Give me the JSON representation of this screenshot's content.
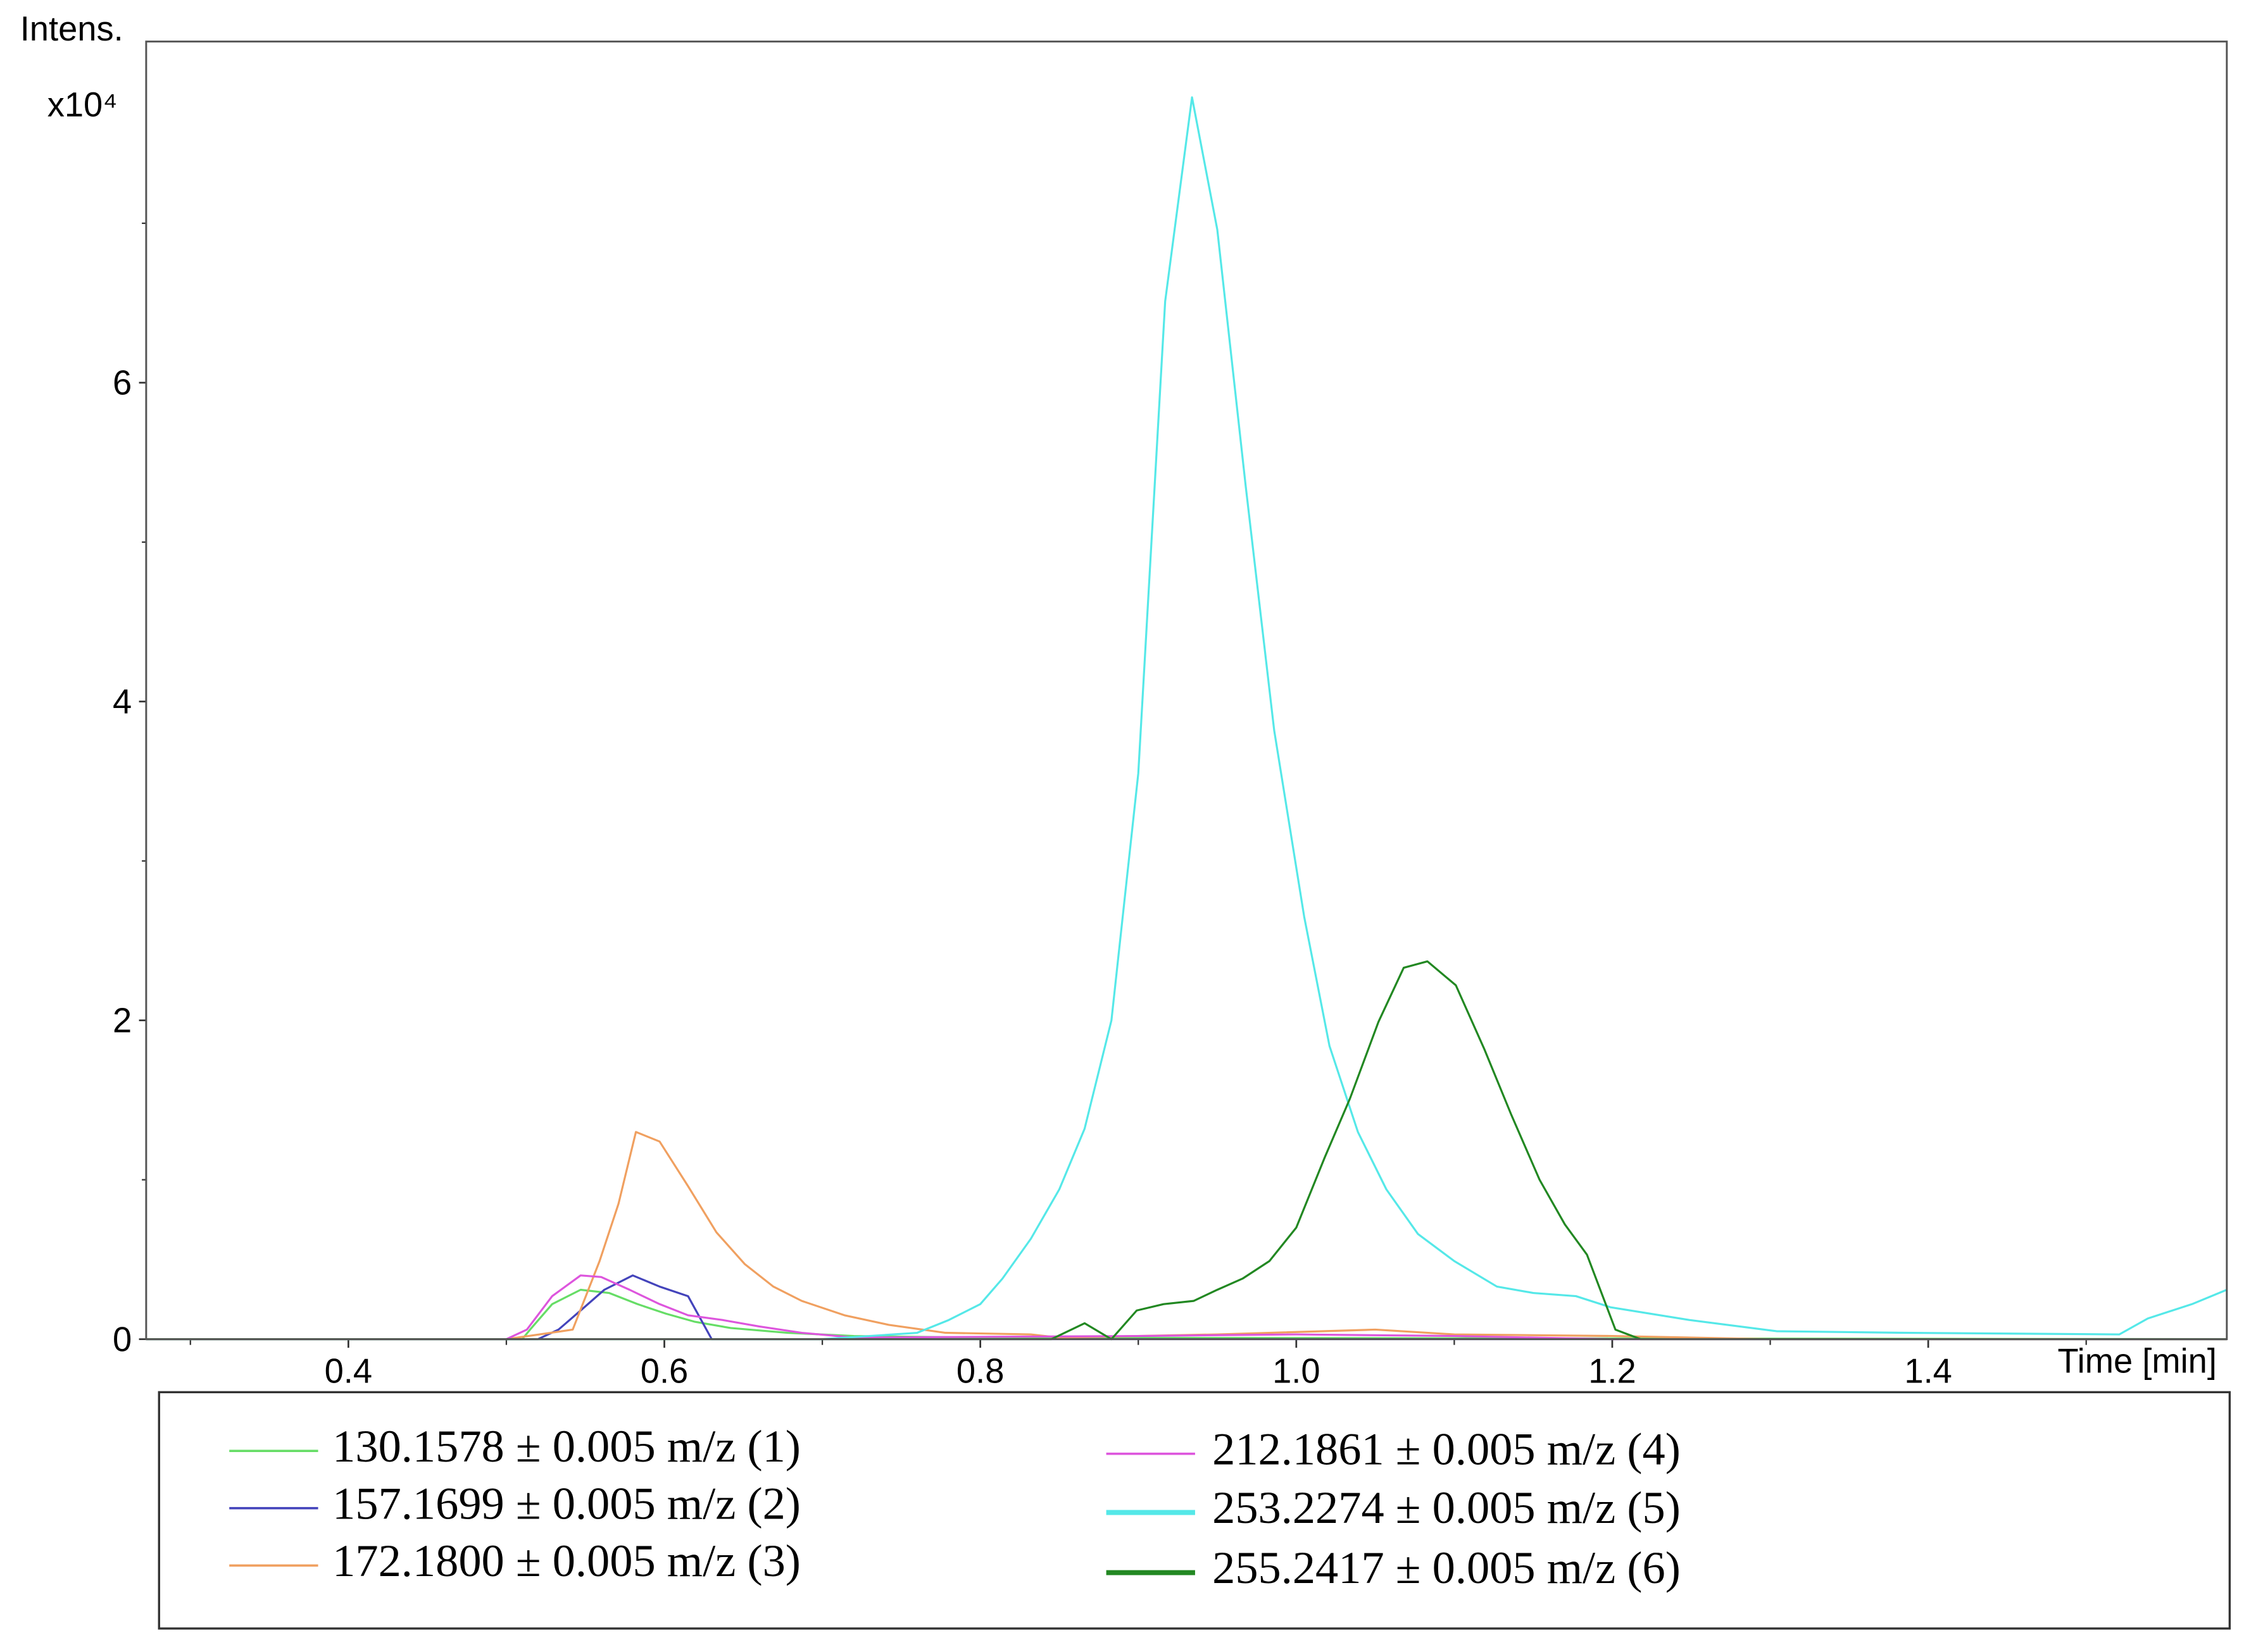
{
  "chart_data": {
    "type": "line",
    "y_label": "Intens.",
    "y_multiplier": "x10⁴",
    "x_label": "Time [min]",
    "xlim": [
      0.272,
      1.589
    ],
    "ylim": [
      0,
      8.14
    ],
    "xticks": [
      {
        "value": 0.4,
        "label": "0.4"
      },
      {
        "value": 0.6,
        "label": "0.6"
      },
      {
        "value": 0.8,
        "label": "0.8"
      },
      {
        "value": 1.0,
        "label": "1.0"
      },
      {
        "value": 1.2,
        "label": "1.2"
      },
      {
        "value": 1.4,
        "label": "1.4"
      }
    ],
    "x_minor_ticks": [
      0.3,
      0.5,
      0.7,
      0.9,
      1.1,
      1.3,
      1.5
    ],
    "yticks": [
      0,
      2,
      4,
      6
    ],
    "y_minor_ticks": [
      1,
      3,
      5,
      7
    ],
    "series": [
      {
        "name": "130.1578 ± 0.005 m/z (1)",
        "color": "#66dd66",
        "x": [
          0.272,
          0.51,
          0.515,
          0.529,
          0.547,
          0.565,
          0.583,
          0.601,
          0.619,
          0.642,
          0.678,
          0.72,
          0.8,
          1.589
        ],
        "values": [
          0,
          0,
          0.06,
          0.22,
          0.31,
          0.29,
          0.22,
          0.16,
          0.11,
          0.07,
          0.04,
          0.02,
          0.01,
          0
        ]
      },
      {
        "name": "157.1699 ± 0.005 m/z (2)",
        "color": "#4444bb",
        "x": [
          0.272,
          0.52,
          0.533,
          0.547,
          0.562,
          0.58,
          0.597,
          0.615,
          0.63,
          1.589
        ],
        "values": [
          0,
          0,
          0.06,
          0.18,
          0.31,
          0.4,
          0.33,
          0.27,
          0,
          0
        ]
      },
      {
        "name": "172.1800 ± 0.005 m/z (3)",
        "color": "#f0a060",
        "x": [
          0.272,
          0.5,
          0.542,
          0.559,
          0.571,
          0.582,
          0.597,
          0.615,
          0.633,
          0.651,
          0.669,
          0.687,
          0.714,
          0.742,
          0.778,
          0.832,
          0.85,
          0.95,
          1.05,
          1.1,
          1.2,
          1.3,
          1.589
        ],
        "values": [
          0,
          0,
          0.06,
          0.49,
          0.85,
          1.3,
          1.24,
          0.96,
          0.67,
          0.47,
          0.33,
          0.24,
          0.15,
          0.09,
          0.04,
          0.03,
          0.01,
          0.03,
          0.06,
          0.03,
          0.02,
          0,
          0
        ]
      },
      {
        "name": "212.1861 ± 0.005 m/z (4)",
        "color": "#dd55dd",
        "x": [
          0.272,
          0.5,
          0.513,
          0.529,
          0.547,
          0.56,
          0.578,
          0.597,
          0.615,
          0.637,
          0.66,
          0.687,
          0.72,
          0.9,
          1.0,
          1.1,
          1.2,
          1.589
        ],
        "values": [
          0,
          0,
          0.06,
          0.27,
          0.4,
          0.39,
          0.31,
          0.22,
          0.15,
          0.12,
          0.08,
          0.04,
          0.01,
          0.02,
          0.03,
          0.02,
          0,
          0
        ]
      },
      {
        "name": "253.2274 ± 0.005 m/z (5)",
        "color": "#55e8e8",
        "x": [
          0.272,
          0.7,
          0.76,
          0.78,
          0.8,
          0.814,
          0.832,
          0.85,
          0.866,
          0.883,
          0.9,
          0.917,
          0.934,
          0.95,
          0.968,
          0.986,
          1.005,
          1.021,
          1.039,
          1.057,
          1.077,
          1.1,
          1.127,
          1.15,
          1.177,
          1.199,
          1.249,
          1.304,
          1.385,
          1.521,
          1.539,
          1.567,
          1.589
        ],
        "values": [
          0,
          0,
          0.04,
          0.12,
          0.22,
          0.38,
          0.63,
          0.94,
          1.32,
          2.0,
          3.55,
          6.51,
          7.79,
          6.96,
          5.35,
          3.82,
          2.65,
          1.84,
          1.3,
          0.94,
          0.66,
          0.49,
          0.33,
          0.29,
          0.27,
          0.2,
          0.12,
          0.05,
          0.04,
          0.03,
          0.13,
          0.22,
          0.31
        ]
      },
      {
        "name": " 255.2417 ± 0.005 m/z (6)",
        "color": "#228822",
        "x": [
          0.272,
          0.845,
          0.866,
          0.883,
          0.899,
          0.916,
          0.935,
          0.95,
          0.966,
          0.983,
          1.0,
          1.018,
          1.034,
          1.052,
          1.068,
          1.083,
          1.101,
          1.119,
          1.136,
          1.154,
          1.17,
          1.184,
          1.202,
          1.218,
          1.589
        ],
        "values": [
          0,
          0,
          0.1,
          0,
          0.18,
          0.22,
          0.24,
          0.31,
          0.38,
          0.49,
          0.7,
          1.14,
          1.51,
          1.99,
          2.33,
          2.37,
          2.22,
          1.82,
          1.41,
          1.0,
          0.72,
          0.53,
          0.06,
          0,
          0
        ]
      }
    ]
  }
}
